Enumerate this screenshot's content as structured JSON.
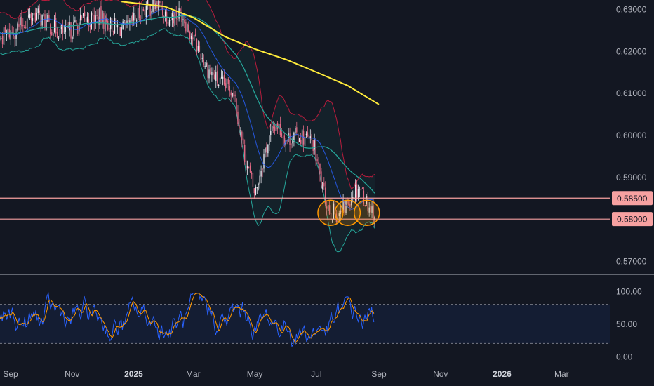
{
  "chart_data": {
    "type": "candlestick",
    "instrument": "",
    "time_axis": {
      "ticks": [
        {
          "label": "Sep",
          "date": "2024-09-01",
          "emphasis": false
        },
        {
          "label": "Nov",
          "date": "2024-11-01",
          "emphasis": false
        },
        {
          "label": "2025",
          "date": "2025-01-01",
          "emphasis": true
        },
        {
          "label": "Mar",
          "date": "2025-03-01",
          "emphasis": false
        },
        {
          "label": "May",
          "date": "2025-05-01",
          "emphasis": false
        },
        {
          "label": "Jul",
          "date": "2025-07-01",
          "emphasis": false
        },
        {
          "label": "Sep",
          "date": "2025-09-01",
          "emphasis": false
        },
        {
          "label": "Nov",
          "date": "2025-11-01",
          "emphasis": false
        },
        {
          "label": "2026",
          "date": "2026-01-01",
          "emphasis": true
        },
        {
          "label": "Mar",
          "date": "2026-03-01",
          "emphasis": false
        }
      ]
    },
    "price_axis": {
      "range": [
        0.5645,
        0.6325
      ],
      "ticks": [
        "0.63000",
        "0.62000",
        "0.61000",
        "0.60000",
        "0.59000",
        "0.58000",
        "0.57000"
      ]
    },
    "horizontal_levels": [
      {
        "label": "0.58500",
        "value": 0.585,
        "color": "#f7a1a1"
      },
      {
        "label": "0.58000",
        "value": 0.58,
        "color": "#f7a1a1"
      }
    ],
    "price_path": [
      {
        "date": "2024-08-01",
        "close": 0.626
      },
      {
        "date": "2024-08-20",
        "close": 0.623
      },
      {
        "date": "2024-09-05",
        "close": 0.625
      },
      {
        "date": "2024-09-25",
        "close": 0.629
      },
      {
        "date": "2024-10-10",
        "close": 0.626
      },
      {
        "date": "2024-10-25",
        "close": 0.624
      },
      {
        "date": "2024-11-10",
        "close": 0.627
      },
      {
        "date": "2024-11-28",
        "close": 0.628
      },
      {
        "date": "2024-12-10",
        "close": 0.626
      },
      {
        "date": "2024-12-25",
        "close": 0.625
      },
      {
        "date": "2025-01-10",
        "close": 0.63
      },
      {
        "date": "2025-01-25",
        "close": 0.631
      },
      {
        "date": "2025-02-05",
        "close": 0.628
      },
      {
        "date": "2025-02-18",
        "close": 0.629
      },
      {
        "date": "2025-03-01",
        "close": 0.623
      },
      {
        "date": "2025-03-15",
        "close": 0.616
      },
      {
        "date": "2025-03-28",
        "close": 0.612
      },
      {
        "date": "2025-04-10",
        "close": 0.611
      },
      {
        "date": "2025-04-20",
        "close": 0.596
      },
      {
        "date": "2025-05-01",
        "close": 0.586
      },
      {
        "date": "2025-05-12",
        "close": 0.597
      },
      {
        "date": "2025-05-22",
        "close": 0.603
      },
      {
        "date": "2025-06-01",
        "close": 0.599
      },
      {
        "date": "2025-06-15",
        "close": 0.6
      },
      {
        "date": "2025-06-28",
        "close": 0.598
      },
      {
        "date": "2025-07-08",
        "close": 0.586
      },
      {
        "date": "2025-07-15",
        "close": 0.582
      },
      {
        "date": "2025-07-25",
        "close": 0.581
      },
      {
        "date": "2025-08-03",
        "close": 0.585
      },
      {
        "date": "2025-08-12",
        "close": 0.588
      },
      {
        "date": "2025-08-20",
        "close": 0.584
      },
      {
        "date": "2025-08-28",
        "close": 0.581
      }
    ],
    "moving_average_200": [
      {
        "date": "2024-12-20",
        "value": 0.6318
      },
      {
        "date": "2025-02-01",
        "value": 0.6306
      },
      {
        "date": "2025-03-01",
        "value": 0.628
      },
      {
        "date": "2025-04-01",
        "value": 0.6235
      },
      {
        "date": "2025-05-01",
        "value": 0.6205
      },
      {
        "date": "2025-06-01",
        "value": 0.618
      },
      {
        "date": "2025-07-01",
        "value": 0.615
      },
      {
        "date": "2025-08-01",
        "value": 0.6118
      },
      {
        "date": "2025-09-01",
        "value": 0.6073
      }
    ],
    "highlight_circles": [
      {
        "date": "2025-07-15",
        "price": 0.5815
      },
      {
        "date": "2025-08-01",
        "price": 0.5815
      },
      {
        "date": "2025-08-20",
        "price": 0.5815
      }
    ],
    "oscillator": {
      "range": [
        0,
        100
      ],
      "ticks": [
        "100.00",
        "50.00",
        "0.00"
      ],
      "band": [
        20,
        80
      ],
      "midline": 50,
      "lines": [
        {
          "color": "#2962ff",
          "role": "%K"
        },
        {
          "color": "#ff9800",
          "role": "%D"
        }
      ]
    },
    "colors": {
      "background": "#131722",
      "up": "#e8e8f0",
      "down": "#e26a86",
      "ma200": "#ffeb3b",
      "basis": "#26a69a",
      "upper_band": "#b71c3c",
      "lower_band": "#26a69a",
      "fast_ma": "#2962ff",
      "highlight": "#ff9800"
    }
  }
}
